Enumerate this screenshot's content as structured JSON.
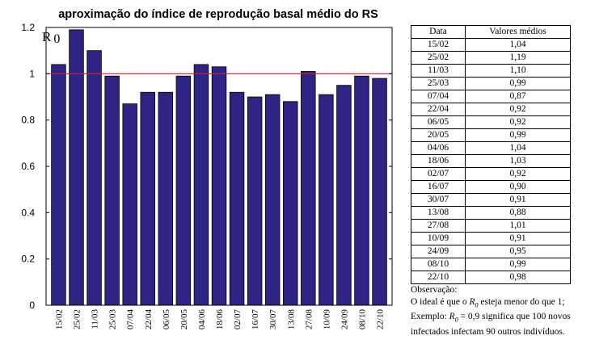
{
  "chart_data": {
    "type": "bar",
    "title": "aproximação do índice de reprodução basal médio do RS",
    "ylabel_symbol": "R",
    "ylabel_subscript": "0",
    "categories": [
      "15/02",
      "25/02",
      "11/03",
      "25/03",
      "07/04",
      "22/04",
      "06/05",
      "20/05",
      "04/06",
      "18/06",
      "02/07",
      "16/07",
      "30/07",
      "13/08",
      "27/08",
      "10/09",
      "24/09",
      "08/10",
      "22/10"
    ],
    "values": [
      1.04,
      1.19,
      1.1,
      0.99,
      0.87,
      0.92,
      0.92,
      0.99,
      1.04,
      1.03,
      0.92,
      0.9,
      0.91,
      0.88,
      1.01,
      0.91,
      0.95,
      0.99,
      0.98
    ],
    "ylim": [
      0,
      1.2
    ],
    "yticks": [
      "0",
      "0.2",
      "0.4",
      "0.6",
      "0.8",
      "1",
      "1.2"
    ],
    "reference_line": 1,
    "bar_color": "#2e2484",
    "reference_color": "#d0222a",
    "grid": false
  },
  "table": {
    "headers": [
      "Data",
      "Valores médios"
    ],
    "rows": [
      [
        "15/02",
        "1,04"
      ],
      [
        "25/02",
        "1,19"
      ],
      [
        "11/03",
        "1,10"
      ],
      [
        "25/03",
        "0,99"
      ],
      [
        "07/04",
        "0,87"
      ],
      [
        "22/04",
        "0,92"
      ],
      [
        "06/05",
        "0,92"
      ],
      [
        "20/05",
        "0,99"
      ],
      [
        "04/06",
        "1,04"
      ],
      [
        "18/06",
        "1,03"
      ],
      [
        "02/07",
        "0,92"
      ],
      [
        "16/07",
        "0,90"
      ],
      [
        "30/07",
        "0,91"
      ],
      [
        "13/08",
        "0,88"
      ],
      [
        "27/08",
        "1,01"
      ],
      [
        "10/09",
        "0,91"
      ],
      [
        "24/09",
        "0,95"
      ],
      [
        "08/10",
        "0,99"
      ],
      [
        "22/10",
        "0,98"
      ]
    ]
  },
  "note": {
    "heading": "Observação:",
    "line1_a": "O ideal é que o ",
    "line1_b": " esteja menor do que 1;",
    "line2_a": "Exemplo: ",
    "line2_b": " = 0,9 significa que 100 novos",
    "line3": "infectados infectam 90 outros indivíduos.",
    "symbol": "R",
    "subscript": "0"
  }
}
